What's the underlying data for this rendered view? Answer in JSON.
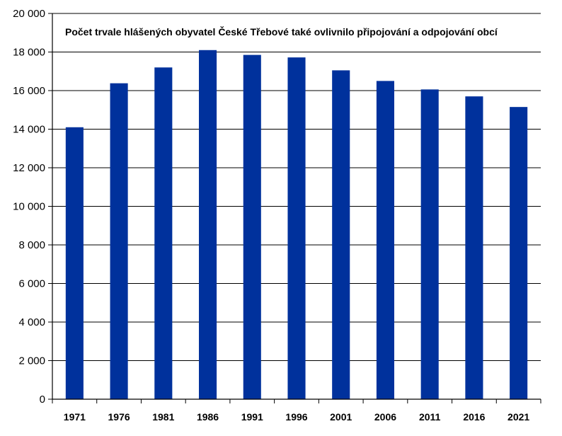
{
  "chart_data": {
    "type": "bar",
    "title": "Počet trvale hlášených obyvatel České Třebové také ovlivnilo připojování a odpojování obcí",
    "xlabel": "",
    "ylabel": "",
    "categories": [
      "1971",
      "1976",
      "1981",
      "1986",
      "1991",
      "1996",
      "2001",
      "2006",
      "2011",
      "2016",
      "2021"
    ],
    "values": [
      14100,
      16380,
      17200,
      18100,
      17850,
      17720,
      17050,
      16500,
      16060,
      15700,
      15150
    ],
    "ylim": [
      0,
      20000
    ],
    "yticks": [
      0,
      2000,
      4000,
      6000,
      8000,
      10000,
      12000,
      14000,
      16000,
      18000,
      20000
    ],
    "ytick_labels": [
      "0",
      "2 000",
      "4 000",
      "6 000",
      "8 000",
      "10 000",
      "12 000",
      "14 000",
      "16 000",
      "18 000",
      "20 000"
    ],
    "grid": true,
    "legend": "none",
    "colors": {
      "bar": "#00319c",
      "grid": "#000000"
    }
  }
}
